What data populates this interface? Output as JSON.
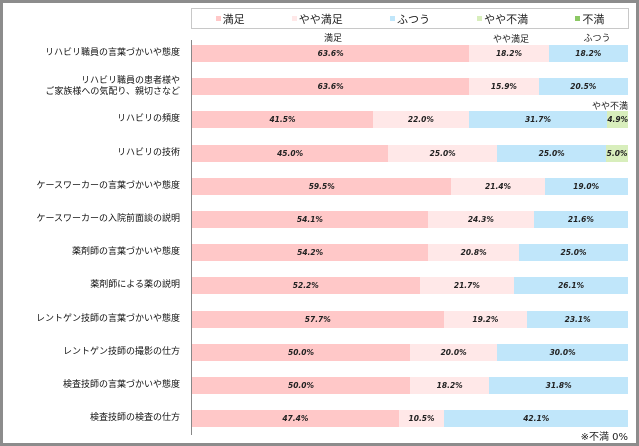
{
  "chart_data": {
    "type": "bar",
    "orientation": "horizontal",
    "stacked": true,
    "categories": [
      "リハビリ職員の言葉づかいや態度",
      "リハビリ職員の患者様や\nご家族様への気配り、親切さなど",
      "リハビリの頻度",
      "リハビリの技術",
      "ケースワーカーの言葉づかいや態度",
      "ケースワーカーの入院前面談の説明",
      "薬剤師の言葉づかいや態度",
      "薬剤師による薬の説明",
      "レントゲン技師の言葉づかいや態度",
      "レントゲン技師の撮影の仕方",
      "検査技師の言葉づかいや態度",
      "検査技師の検査の仕方"
    ],
    "series": [
      {
        "name": "満足",
        "color": "#ffc8c8",
        "values": [
          63.6,
          63.6,
          41.5,
          45.0,
          59.5,
          54.1,
          54.2,
          52.2,
          57.7,
          50.0,
          50.0,
          47.4
        ]
      },
      {
        "name": "やや満足",
        "color": "#ffe8e8",
        "values": [
          18.2,
          15.9,
          22.0,
          25.0,
          21.4,
          24.3,
          20.8,
          21.7,
          19.2,
          20.0,
          18.2,
          10.5
        ]
      },
      {
        "name": "ふつう",
        "color": "#c0e6fa",
        "values": [
          18.2,
          20.5,
          31.7,
          25.0,
          19.0,
          21.6,
          25.0,
          26.1,
          23.1,
          30.0,
          31.8,
          42.1
        ]
      },
      {
        "name": "やや不満",
        "color": "#d8eebc",
        "values": [
          0,
          0,
          4.9,
          5.0,
          0,
          0,
          0,
          0,
          0,
          0,
          0,
          0
        ]
      },
      {
        "name": "不満",
        "color": "#8cc864",
        "values": [
          0,
          0,
          0,
          0,
          0,
          0,
          0,
          0,
          0,
          0,
          0,
          0
        ]
      }
    ],
    "value_labels": [
      [
        "63.6%",
        "18.2%",
        "18.2%",
        "",
        ""
      ],
      [
        "63.6%",
        "15.9%",
        "20.5%",
        "",
        ""
      ],
      [
        "41.5%",
        "22.0%",
        "31.7%",
        "4.9%",
        ""
      ],
      [
        "45.0%",
        "25.0%",
        "25.0%",
        "5.0%",
        ""
      ],
      [
        "59.5%",
        "21.4%",
        "19.0%",
        "",
        ""
      ],
      [
        "54.1%",
        "24.3%",
        "21.6%",
        "",
        ""
      ],
      [
        "54.2%",
        "20.8%",
        "25.0%",
        "",
        ""
      ],
      [
        "52.2%",
        "21.7%",
        "26.1%",
        "",
        ""
      ],
      [
        "57.7%",
        "19.2%",
        "23.1%",
        "",
        ""
      ],
      [
        "50.0%",
        "20.0%",
        "30.0%",
        "",
        ""
      ],
      [
        "50.0%",
        "18.2%",
        "31.8%",
        "",
        ""
      ],
      [
        "47.4%",
        "10.5%",
        "42.1%",
        "",
        ""
      ]
    ],
    "xlim": [
      0,
      100
    ],
    "legend_position": "top",
    "grid": false,
    "segment_headers": {
      "first": "満足",
      "second": "やや満足",
      "third": "ふつう",
      "fourth": "やや不満"
    },
    "note": "※不満 0%"
  }
}
